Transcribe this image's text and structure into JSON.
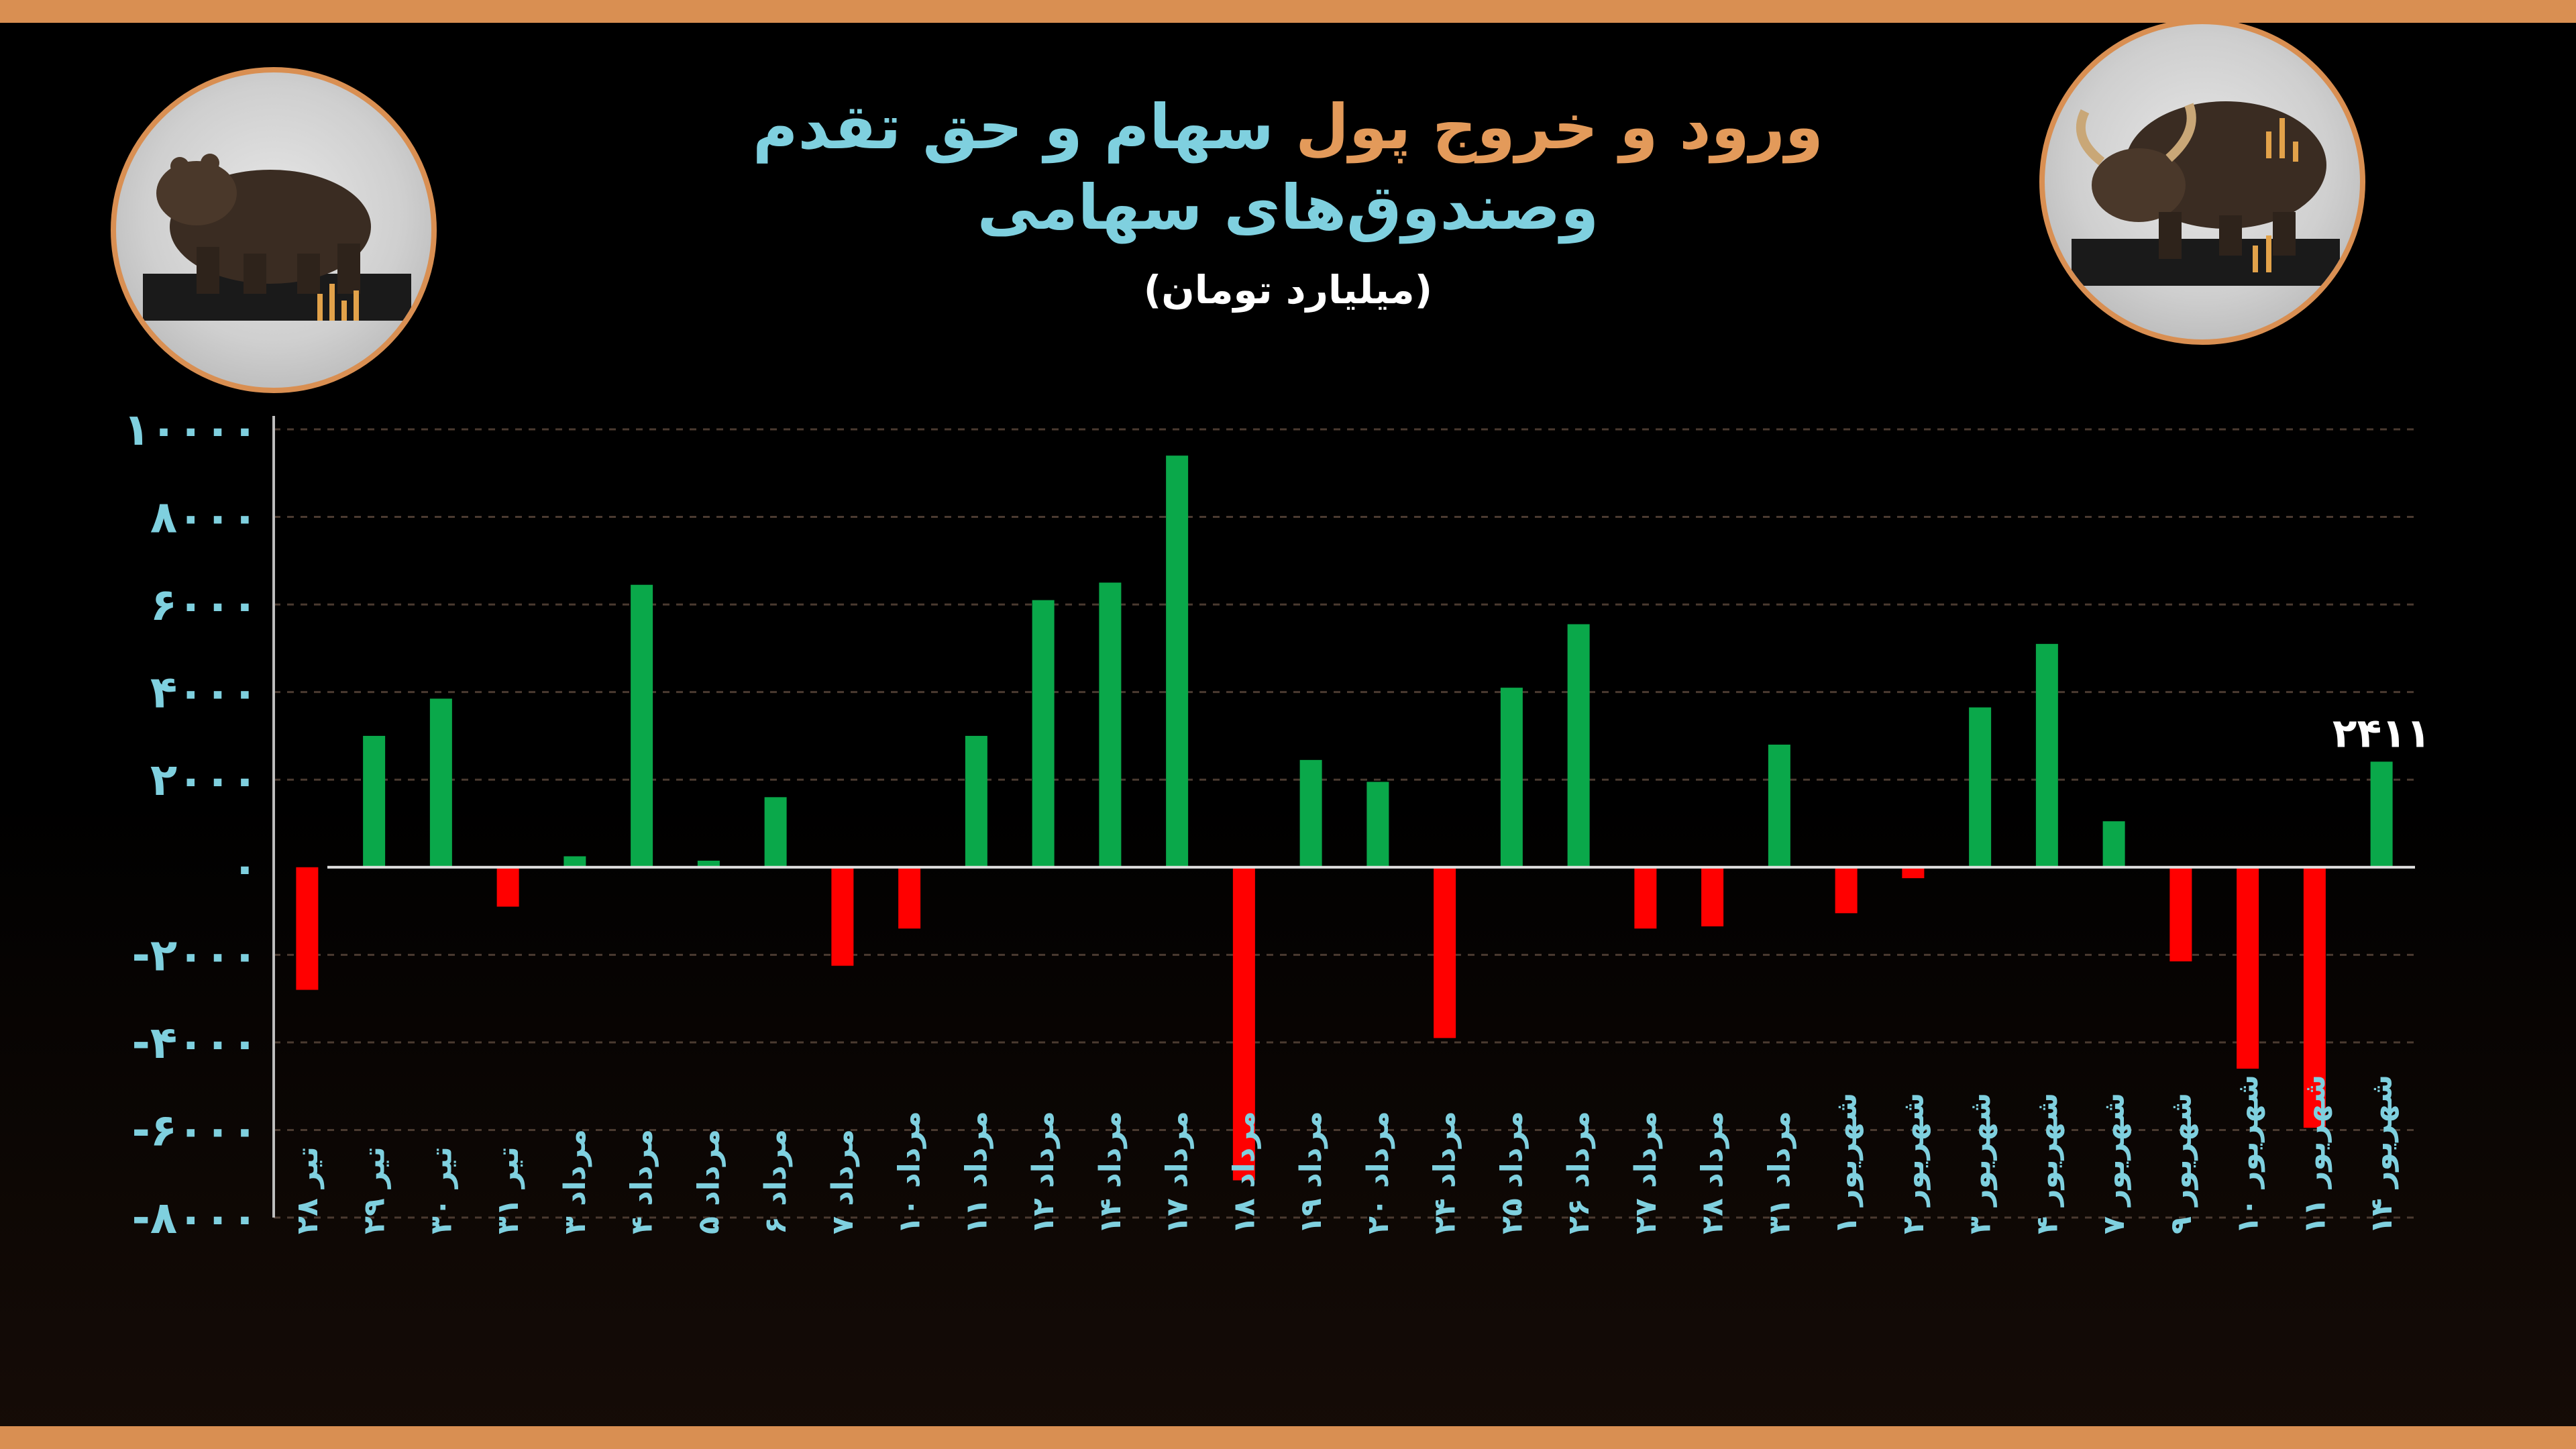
{
  "title": {
    "part1": "ورود و خروج پول",
    "part2": "سهام و حق تقدم",
    "line2": "وصندوق‌های سهامی",
    "part1_color": "#e39a5a",
    "part2_color": "#7fd0df"
  },
  "subtitle": "(میلیارد تومان)",
  "colors": {
    "accent": "#d98f52",
    "positive": "#0aa84a",
    "negative": "#ff0000",
    "axis_text": "#7fd0df"
  },
  "icons": {
    "left_medallion": "bear-icon",
    "right_medallion": "bull-icon"
  },
  "chart_data": {
    "type": "bar",
    "ylim": [
      -8000,
      10000
    ],
    "yticks": [
      -8000,
      -6000,
      -4000,
      -2000,
      0,
      2000,
      4000,
      6000,
      8000,
      10000
    ],
    "ytick_labels": [
      "-۸۰۰۰",
      "-۶۰۰۰",
      "-۴۰۰۰",
      "-۲۰۰۰",
      "۰",
      "۲۰۰۰",
      "۴۰۰۰",
      "۶۰۰۰",
      "۸۰۰۰",
      "۱۰۰۰۰"
    ],
    "grid": true,
    "categories": [
      "تیر ۲۸",
      "تیر ۲۹",
      "تیر ۳۰",
      "تیر ۳۱",
      "مرداد ۳",
      "مرداد ۴",
      "مرداد ۵",
      "مرداد ۶",
      "مرداد ۷",
      "مرداد ۱۰",
      "مرداد ۱۱",
      "مرداد ۱۲",
      "مرداد ۱۴",
      "مرداد ۱۷",
      "مرداد ۱۸",
      "مرداد ۱۹",
      "مرداد ۲۰",
      "مرداد ۲۴",
      "مرداد ۲۵",
      "مرداد ۲۶",
      "مرداد ۲۷",
      "مرداد ۲۸",
      "مرداد ۳۱",
      "شهریور ۱",
      "شهریور ۲",
      "شهریور ۳",
      "شهریور ۴",
      "شهریور ۷",
      "شهریور ۹",
      "شهریور ۱۰",
      "شهریور ۱۱",
      "شهریور ۱۴"
    ],
    "values": [
      -2800,
      3000,
      3850,
      -900,
      250,
      6450,
      150,
      1600,
      -2250,
      -1400,
      3000,
      6100,
      6500,
      9400,
      -7150,
      2450,
      1950,
      -3900,
      4100,
      5550,
      -1400,
      -1350,
      2800,
      -1050,
      -250,
      3650,
      5100,
      1050,
      -2150,
      -4600,
      -5950,
      2411
    ],
    "data_labels": [
      {
        "index": 31,
        "text": "۲۴۱۱"
      }
    ]
  }
}
